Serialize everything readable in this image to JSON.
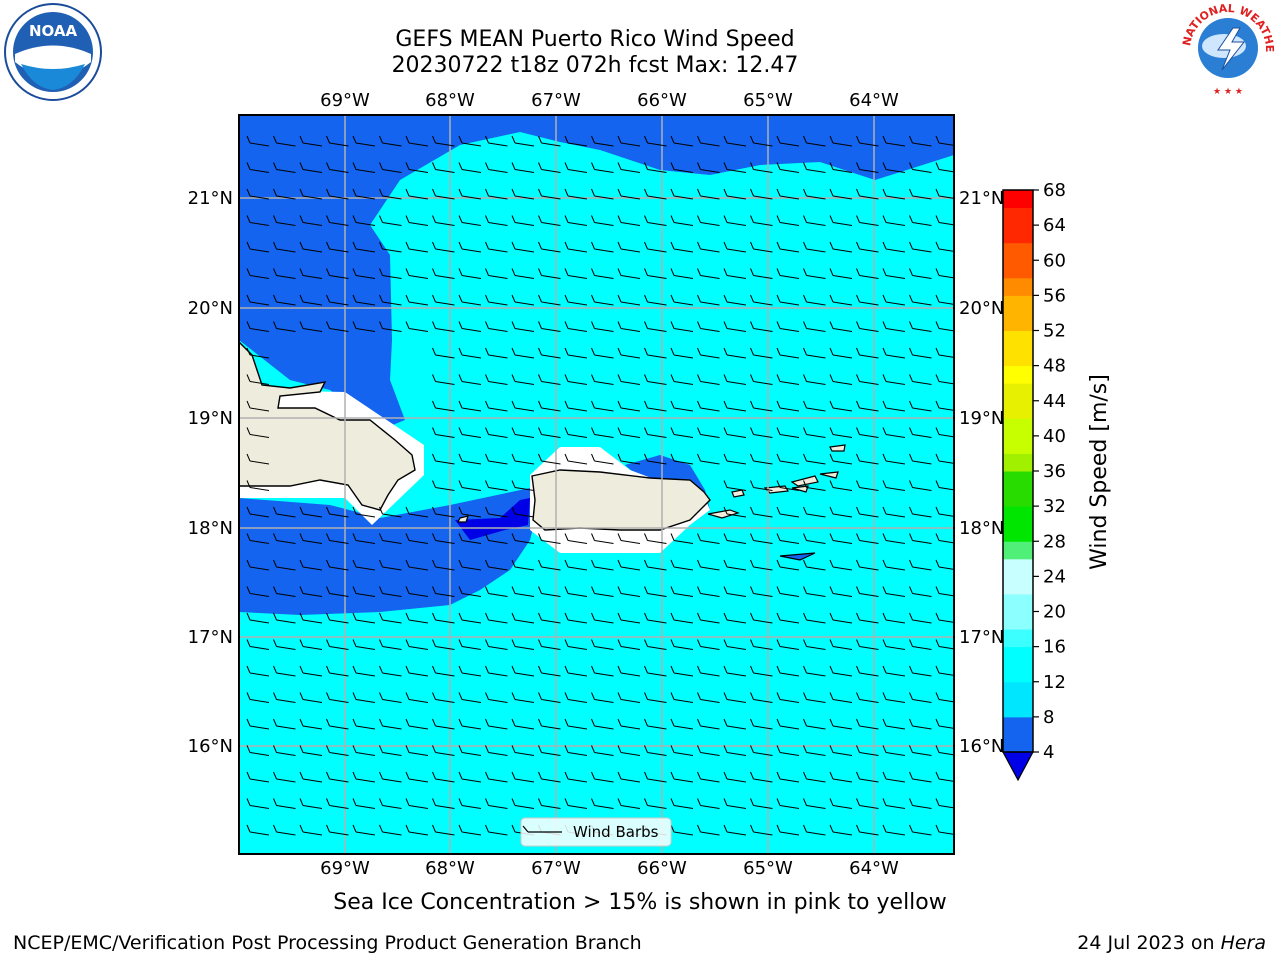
{
  "title": {
    "line1": "GEFS MEAN Puerto Rico Wind Speed",
    "line2": "20230722 t18z 072h fcst   Max: 12.47"
  },
  "map": {
    "lon_labels": [
      "69°W",
      "68°W",
      "67°W",
      "66°W",
      "65°W",
      "64°W"
    ],
    "lat_labels": [
      "21°N",
      "20°N",
      "19°N",
      "18°N",
      "17°N",
      "16°N"
    ],
    "legend_label": "Wind Barbs"
  },
  "colorbar": {
    "label": "Wind Speed [m/s]",
    "ticks": [
      "4",
      "8",
      "12",
      "16",
      "20",
      "24",
      "28",
      "32",
      "36",
      "40",
      "44",
      "48",
      "52",
      "56",
      "60",
      "64",
      "68"
    ],
    "colors": [
      "#1464f0",
      "#00e6ff",
      "#00ffff",
      "#3cffff",
      "#8cffff",
      "#c8ffff",
      "#50f078",
      "#00e600",
      "#28dc00",
      "#a0f000",
      "#c8ff00",
      "#e6f000",
      "#ffff00",
      "#ffe100",
      "#ffb400",
      "#ff8c00",
      "#ff5a00",
      "#ff2800",
      "#ff0000"
    ]
  },
  "subtitle": "Sea Ice Concentration > 15% is shown in pink to yellow",
  "footer": {
    "left": "NCEP/EMC/Verification Post Processing Product Generation Branch",
    "right_date": "24 Jul 2023 on ",
    "right_host": "Hera"
  },
  "logos": {
    "noaa_text": "NOAA",
    "nws_text": "NATIONAL WEATHER SERVICE"
  }
}
